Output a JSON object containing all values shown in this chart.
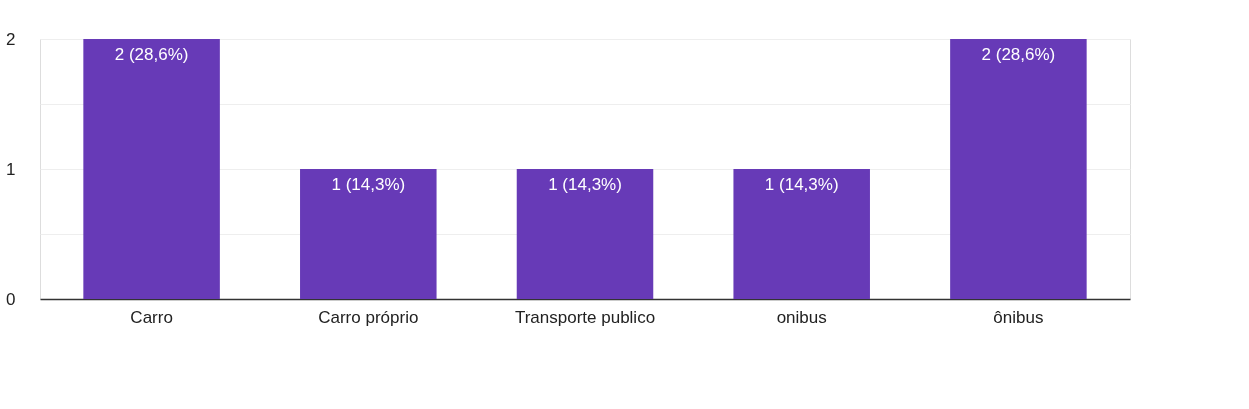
{
  "chart_data": {
    "type": "bar",
    "categories": [
      "Carro",
      "Carro próprio",
      "Transporte publico",
      "onibus",
      "ônibus"
    ],
    "values": [
      2,
      1,
      1,
      1,
      2
    ],
    "color": "#673ab7",
    "value_labels": [
      "2 (28,6%)",
      "1 (14,3%)",
      "1 (14,3%)",
      "1 (14,3%)",
      "2 (28,6%)"
    ],
    "ylim": [
      0,
      2
    ],
    "yticks": [
      0,
      {
        "value": 0.5,
        "label": null
      },
      1,
      {
        "value": 1.5,
        "label": null
      },
      2
    ],
    "grid": "y"
  }
}
